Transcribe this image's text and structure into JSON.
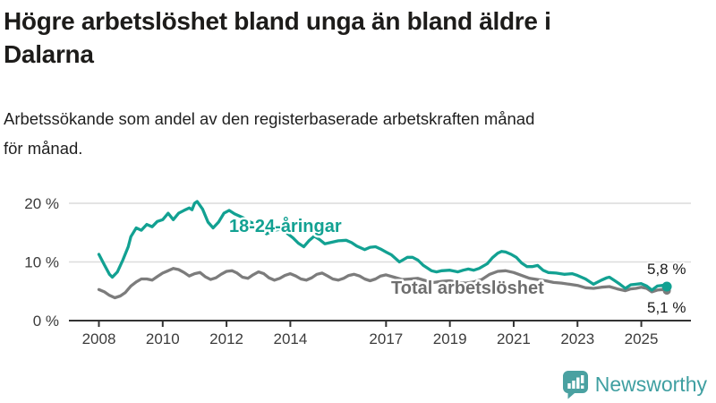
{
  "header": {
    "title_lines": [
      "Högre arbetslöshet bland unga än bland äldre i",
      "Dalarna"
    ],
    "subtitle_lines": [
      "Arbetssökande som andel av den registerbaserade arbetskraften månad",
      "för månad."
    ]
  },
  "chart_data": {
    "type": "line",
    "title": "Högre arbetslöshet bland unga än bland äldre i Dalarna",
    "subtitle": "Arbetssökande som andel av den registerbaserade arbetskraften månad för månad.",
    "xlabel": "",
    "ylabel": "",
    "unit": "%",
    "grid": "horizontal",
    "legend_position": "inline-labels",
    "x_range": [
      2008,
      2025.83
    ],
    "ylim": [
      0,
      22
    ],
    "x_ticks": [
      2008,
      2010,
      2012,
      2014,
      2017,
      2019,
      2021,
      2023,
      2025
    ],
    "y_ticks": [
      {
        "value": 0,
        "label": "0 %"
      },
      {
        "value": 10,
        "label": "10 %"
      },
      {
        "value": 20,
        "label": "20 %"
      }
    ],
    "series": [
      {
        "name": "18-24-åringar",
        "color": "#12a192",
        "end_label": "5,8 %",
        "end_value": 5.8,
        "points": [
          [
            2008.0,
            11.3
          ],
          [
            2008.17,
            9.5
          ],
          [
            2008.33,
            7.9
          ],
          [
            2008.42,
            7.4
          ],
          [
            2008.58,
            8.3
          ],
          [
            2008.75,
            10.3
          ],
          [
            2008.92,
            12.6
          ],
          [
            2009.0,
            14.3
          ],
          [
            2009.17,
            15.8
          ],
          [
            2009.33,
            15.4
          ],
          [
            2009.5,
            16.4
          ],
          [
            2009.67,
            16.0
          ],
          [
            2009.83,
            16.9
          ],
          [
            2010.0,
            17.2
          ],
          [
            2010.17,
            18.3
          ],
          [
            2010.33,
            17.2
          ],
          [
            2010.5,
            18.3
          ],
          [
            2010.67,
            18.8
          ],
          [
            2010.83,
            19.2
          ],
          [
            2010.92,
            18.9
          ],
          [
            2011.0,
            20.0
          ],
          [
            2011.08,
            20.3
          ],
          [
            2011.25,
            19.0
          ],
          [
            2011.42,
            16.8
          ],
          [
            2011.58,
            15.8
          ],
          [
            2011.75,
            16.8
          ],
          [
            2011.92,
            18.3
          ],
          [
            2012.08,
            18.8
          ],
          [
            2012.25,
            18.2
          ],
          [
            2012.5,
            17.6
          ],
          [
            2012.75,
            16.8
          ],
          [
            2013.0,
            16.2
          ],
          [
            2013.25,
            14.8
          ],
          [
            2013.5,
            15.4
          ],
          [
            2013.75,
            15.6
          ],
          [
            2013.92,
            14.8
          ],
          [
            2014.08,
            14.1
          ],
          [
            2014.25,
            13.2
          ],
          [
            2014.42,
            12.6
          ],
          [
            2014.58,
            13.6
          ],
          [
            2014.75,
            14.4
          ],
          [
            2014.92,
            13.8
          ],
          [
            2015.08,
            13.1
          ],
          [
            2015.25,
            13.3
          ],
          [
            2015.5,
            13.6
          ],
          [
            2015.75,
            13.7
          ],
          [
            2015.92,
            13.3
          ],
          [
            2016.08,
            12.7
          ],
          [
            2016.33,
            12.1
          ],
          [
            2016.5,
            12.5
          ],
          [
            2016.67,
            12.6
          ],
          [
            2016.83,
            12.2
          ],
          [
            2017.0,
            11.7
          ],
          [
            2017.17,
            11.2
          ],
          [
            2017.42,
            10.0
          ],
          [
            2017.67,
            10.8
          ],
          [
            2017.83,
            10.8
          ],
          [
            2018.0,
            10.3
          ],
          [
            2018.17,
            9.4
          ],
          [
            2018.42,
            8.5
          ],
          [
            2018.58,
            8.3
          ],
          [
            2018.75,
            8.5
          ],
          [
            2019.0,
            8.6
          ],
          [
            2019.25,
            8.3
          ],
          [
            2019.42,
            8.6
          ],
          [
            2019.58,
            8.8
          ],
          [
            2019.75,
            8.6
          ],
          [
            2019.92,
            8.9
          ],
          [
            2020.17,
            9.7
          ],
          [
            2020.33,
            10.7
          ],
          [
            2020.5,
            11.5
          ],
          [
            2020.62,
            11.8
          ],
          [
            2020.75,
            11.7
          ],
          [
            2020.92,
            11.3
          ],
          [
            2021.08,
            10.8
          ],
          [
            2021.25,
            9.8
          ],
          [
            2021.42,
            9.2
          ],
          [
            2021.58,
            9.2
          ],
          [
            2021.75,
            9.4
          ],
          [
            2021.92,
            8.6
          ],
          [
            2022.08,
            8.2
          ],
          [
            2022.33,
            8.1
          ],
          [
            2022.58,
            7.9
          ],
          [
            2022.83,
            8.0
          ],
          [
            2023.0,
            7.7
          ],
          [
            2023.25,
            7.1
          ],
          [
            2023.5,
            6.2
          ],
          [
            2023.75,
            6.9
          ],
          [
            2023.92,
            7.3
          ],
          [
            2024.0,
            7.4
          ],
          [
            2024.17,
            6.8
          ],
          [
            2024.33,
            6.2
          ],
          [
            2024.5,
            5.5
          ],
          [
            2024.67,
            6.1
          ],
          [
            2024.83,
            6.2
          ],
          [
            2025.0,
            6.3
          ],
          [
            2025.17,
            5.9
          ],
          [
            2025.33,
            5.2
          ],
          [
            2025.5,
            5.9
          ],
          [
            2025.67,
            6.0
          ],
          [
            2025.8,
            5.8
          ]
        ]
      },
      {
        "name": "Total arbetslöshet",
        "color": "#7c7c7c",
        "end_label": "5,1 %",
        "end_value": 5.1,
        "points": [
          [
            2008.0,
            5.3
          ],
          [
            2008.17,
            4.9
          ],
          [
            2008.33,
            4.3
          ],
          [
            2008.5,
            3.9
          ],
          [
            2008.67,
            4.2
          ],
          [
            2008.83,
            4.8
          ],
          [
            2009.0,
            5.9
          ],
          [
            2009.17,
            6.6
          ],
          [
            2009.33,
            7.1
          ],
          [
            2009.5,
            7.1
          ],
          [
            2009.67,
            6.9
          ],
          [
            2009.83,
            7.5
          ],
          [
            2010.0,
            8.1
          ],
          [
            2010.17,
            8.5
          ],
          [
            2010.33,
            8.9
          ],
          [
            2010.5,
            8.7
          ],
          [
            2010.67,
            8.2
          ],
          [
            2010.83,
            7.6
          ],
          [
            2011.0,
            8.0
          ],
          [
            2011.17,
            8.2
          ],
          [
            2011.33,
            7.5
          ],
          [
            2011.5,
            7.0
          ],
          [
            2011.67,
            7.3
          ],
          [
            2011.83,
            7.9
          ],
          [
            2012.0,
            8.4
          ],
          [
            2012.17,
            8.5
          ],
          [
            2012.33,
            8.1
          ],
          [
            2012.5,
            7.4
          ],
          [
            2012.67,
            7.2
          ],
          [
            2012.83,
            7.8
          ],
          [
            2013.0,
            8.3
          ],
          [
            2013.17,
            8.0
          ],
          [
            2013.33,
            7.3
          ],
          [
            2013.5,
            6.9
          ],
          [
            2013.67,
            7.2
          ],
          [
            2013.83,
            7.7
          ],
          [
            2014.0,
            8.0
          ],
          [
            2014.17,
            7.6
          ],
          [
            2014.33,
            7.1
          ],
          [
            2014.5,
            6.9
          ],
          [
            2014.67,
            7.3
          ],
          [
            2014.83,
            7.9
          ],
          [
            2015.0,
            8.1
          ],
          [
            2015.17,
            7.6
          ],
          [
            2015.33,
            7.1
          ],
          [
            2015.5,
            6.9
          ],
          [
            2015.67,
            7.2
          ],
          [
            2015.83,
            7.7
          ],
          [
            2016.0,
            7.9
          ],
          [
            2016.17,
            7.6
          ],
          [
            2016.33,
            7.1
          ],
          [
            2016.5,
            6.8
          ],
          [
            2016.67,
            7.1
          ],
          [
            2016.83,
            7.6
          ],
          [
            2017.0,
            7.8
          ],
          [
            2017.25,
            7.4
          ],
          [
            2017.5,
            7.0
          ],
          [
            2017.75,
            7.1
          ],
          [
            2018.0,
            7.2
          ],
          [
            2018.25,
            6.8
          ],
          [
            2018.5,
            6.5
          ],
          [
            2018.75,
            6.7
          ],
          [
            2019.0,
            6.8
          ],
          [
            2019.25,
            6.5
          ],
          [
            2019.5,
            6.4
          ],
          [
            2019.75,
            6.6
          ],
          [
            2020.0,
            7.0
          ],
          [
            2020.25,
            7.9
          ],
          [
            2020.5,
            8.4
          ],
          [
            2020.75,
            8.5
          ],
          [
            2021.0,
            8.2
          ],
          [
            2021.25,
            7.7
          ],
          [
            2021.5,
            7.2
          ],
          [
            2021.75,
            7.0
          ],
          [
            2022.0,
            6.8
          ],
          [
            2022.25,
            6.5
          ],
          [
            2022.5,
            6.4
          ],
          [
            2022.75,
            6.2
          ],
          [
            2023.0,
            6.0
          ],
          [
            2023.25,
            5.6
          ],
          [
            2023.5,
            5.5
          ],
          [
            2023.75,
            5.7
          ],
          [
            2024.0,
            5.8
          ],
          [
            2024.25,
            5.4
          ],
          [
            2024.5,
            5.1
          ],
          [
            2024.67,
            5.4
          ],
          [
            2024.83,
            5.5
          ],
          [
            2025.0,
            5.7
          ],
          [
            2025.17,
            5.5
          ],
          [
            2025.33,
            4.9
          ],
          [
            2025.5,
            5.2
          ],
          [
            2025.67,
            5.3
          ],
          [
            2025.8,
            5.1
          ]
        ]
      }
    ]
  },
  "footer": {
    "brand": "Newsworthy",
    "brand_color": "#3f9fa1",
    "logo_icon": "bar-chart-speech-bubble-icon"
  }
}
